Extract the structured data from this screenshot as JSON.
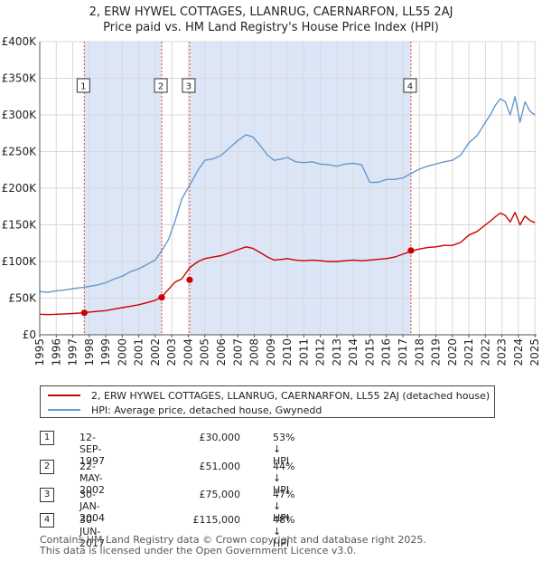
{
  "title_line1": "2, ERW HYWEL COTTAGES, LLANRUG, CAERNARFON, LL55 2AJ",
  "title_line2": "Price paid vs. HM Land Registry's House Price Index (HPI)",
  "colors": {
    "hpi": "#6699cc",
    "price": "#cc0000",
    "band": "#dde6f7",
    "event_line": "#dd4444"
  },
  "chart_data": {
    "type": "line",
    "ylim": [
      0,
      400000
    ],
    "xlim": [
      1995.0,
      2025.1
    ],
    "y_ticks": [
      0,
      50000,
      100000,
      150000,
      200000,
      250000,
      300000,
      350000,
      400000
    ],
    "y_tick_labels": [
      "£0",
      "£50K",
      "£100K",
      "£150K",
      "£200K",
      "£250K",
      "£300K",
      "£350K",
      "£400K"
    ],
    "x_ticks": [
      1995,
      1996,
      1997,
      1998,
      1999,
      2000,
      2001,
      2002,
      2003,
      2004,
      2005,
      2006,
      2007,
      2008,
      2009,
      2010,
      2011,
      2012,
      2013,
      2014,
      2015,
      2016,
      2017,
      2018,
      2019,
      2020,
      2021,
      2022,
      2023,
      2024,
      2025
    ],
    "x_tick_labels": [
      "1995",
      "1996",
      "1997",
      "1998",
      "1999",
      "2000",
      "2001",
      "2002",
      "2003",
      "2004",
      "2005",
      "2006",
      "2007",
      "2008",
      "2009",
      "2010",
      "2011",
      "2012",
      "2013",
      "2014",
      "2015",
      "2016",
      "2017",
      "2018",
      "2019",
      "2020",
      "2021",
      "2022",
      "2023",
      "2024",
      "2025"
    ],
    "series": [
      {
        "name": "HPI: Average price, detached house, Gwynedd",
        "x": [
          1995.0,
          1995.5,
          1996.0,
          1996.5,
          1997.0,
          1997.7,
          1998.0,
          1998.5,
          1999.0,
          1999.5,
          2000.0,
          2000.5,
          2001.0,
          2001.5,
          2002.0,
          2002.4,
          2002.8,
          2003.2,
          2003.6,
          2004.1,
          2004.6,
          2005.0,
          2005.5,
          2006.0,
          2006.5,
          2007.0,
          2007.5,
          2007.9,
          2008.3,
          2008.8,
          2009.2,
          2009.7,
          2010.0,
          2010.5,
          2011.0,
          2011.5,
          2012.0,
          2012.5,
          2013.0,
          2013.5,
          2014.0,
          2014.5,
          2015.0,
          2015.5,
          2016.0,
          2016.5,
          2017.0,
          2017.5,
          2018.0,
          2018.5,
          2019.0,
          2019.5,
          2020.0,
          2020.5,
          2021.0,
          2021.5,
          2022.0,
          2022.3,
          2022.6,
          2022.9,
          2023.2,
          2023.5,
          2023.8,
          2024.1,
          2024.4,
          2024.7,
          2025.0
        ],
        "values": [
          59000,
          58000,
          60000,
          61000,
          63000,
          65000,
          66000,
          68000,
          71000,
          76000,
          80000,
          86000,
          90000,
          96000,
          102000,
          115000,
          130000,
          155000,
          185000,
          205000,
          225000,
          238000,
          240000,
          245000,
          255000,
          265000,
          273000,
          270000,
          260000,
          245000,
          238000,
          240000,
          242000,
          236000,
          235000,
          236000,
          233000,
          232000,
          230000,
          233000,
          234000,
          232000,
          208000,
          208000,
          212000,
          212000,
          214000,
          220000,
          226000,
          230000,
          233000,
          236000,
          238000,
          245000,
          262000,
          272000,
          290000,
          300000,
          313000,
          322000,
          318000,
          300000,
          325000,
          290000,
          318000,
          305000,
          300000
        ]
      },
      {
        "name": "2, ERW HYWEL COTTAGES, LLANRUG, CAERNARFON, LL55 2AJ (detached house)",
        "x": [
          1995.0,
          1995.5,
          1996.0,
          1996.5,
          1997.0,
          1997.7,
          1998.0,
          1998.5,
          1999.0,
          1999.5,
          2000.0,
          2000.5,
          2001.0,
          2001.5,
          2002.0,
          2002.4,
          2002.8,
          2003.2,
          2003.6,
          2004.1,
          2004.6,
          2005.0,
          2005.5,
          2006.0,
          2006.5,
          2007.0,
          2007.5,
          2007.9,
          2008.3,
          2008.8,
          2009.2,
          2009.7,
          2010.0,
          2010.5,
          2011.0,
          2011.5,
          2012.0,
          2012.5,
          2013.0,
          2013.5,
          2014.0,
          2014.5,
          2015.0,
          2015.5,
          2016.0,
          2016.5,
          2017.0,
          2017.5,
          2018.0,
          2018.5,
          2019.0,
          2019.5,
          2020.0,
          2020.5,
          2021.0,
          2021.5,
          2022.0,
          2022.3,
          2022.6,
          2022.9,
          2023.2,
          2023.5,
          2023.8,
          2024.1,
          2024.4,
          2024.7,
          2025.0
        ],
        "values": [
          28000,
          27500,
          28000,
          28500,
          29000,
          30000,
          31000,
          32000,
          33000,
          35000,
          37000,
          39000,
          41000,
          44000,
          47000,
          52000,
          62000,
          72000,
          76000,
          92000,
          100000,
          104000,
          106000,
          108000,
          112000,
          116000,
          120000,
          118000,
          113000,
          106000,
          102000,
          103000,
          104000,
          102000,
          101000,
          102000,
          101000,
          100000,
          100000,
          101000,
          102000,
          101000,
          102000,
          103000,
          104000,
          106000,
          110000,
          114000,
          117000,
          119000,
          120000,
          122000,
          122000,
          126000,
          136000,
          141000,
          150000,
          155000,
          161000,
          166000,
          163000,
          154000,
          167000,
          150000,
          162000,
          156000,
          153000
        ]
      }
    ],
    "shaded_bands": [
      [
        1997.7,
        2002.39
      ],
      [
        2004.08,
        2017.49
      ]
    ],
    "events": [
      {
        "id": "1",
        "x": 1997.7,
        "price": 30000,
        "date": "12-SEP-1997",
        "price_label": "£30,000",
        "hpi_label": "53% ↓ HPI"
      },
      {
        "id": "2",
        "x": 2002.39,
        "price": 51000,
        "date": "22-MAY-2002",
        "price_label": "£51,000",
        "hpi_label": "44% ↓ HPI"
      },
      {
        "id": "3",
        "x": 2004.08,
        "price": 75000,
        "date": "30-JAN-2004",
        "price_label": "£75,000",
        "hpi_label": "47% ↓ HPI"
      },
      {
        "id": "4",
        "x": 2017.49,
        "price": 115000,
        "date": "30-JUN-2017",
        "price_label": "£115,000",
        "hpi_label": "48% ↓ HPI"
      }
    ],
    "legend": {
      "price_label": "2, ERW HYWEL COTTAGES, LLANRUG, CAERNARFON, LL55 2AJ (detached house)",
      "hpi_label": "HPI: Average price, detached house, Gwynedd"
    }
  },
  "footer_line1": "Contains HM Land Registry data © Crown copyright and database right 2025.",
  "footer_line2": "This data is licensed under the Open Government Licence v3.0."
}
